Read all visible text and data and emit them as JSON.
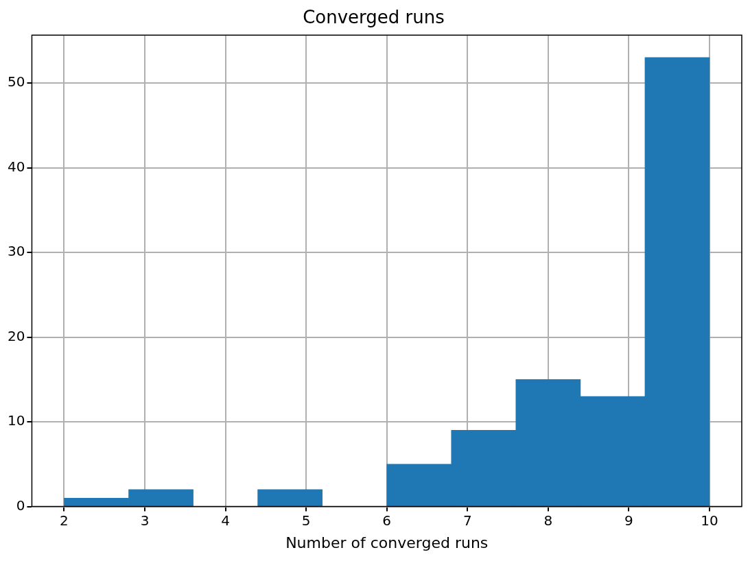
{
  "chart_data": {
    "type": "histogram",
    "title": "Converged runs",
    "xlabel": "Number of converged runs",
    "bins": [
      2,
      2.8,
      3.6,
      4.4,
      5.2,
      6,
      6.8,
      7.6,
      8.4,
      9.2,
      10
    ],
    "values": [
      1,
      2,
      0,
      2,
      0,
      5,
      9,
      15,
      13,
      53
    ],
    "color": "#1f77b4",
    "xlim": [
      1.6,
      10.4
    ],
    "xticks": [
      2,
      3,
      4,
      5,
      6,
      7,
      8,
      9,
      10
    ],
    "ylim": [
      0,
      55.65
    ],
    "yticks": [
      0,
      10,
      20,
      30,
      40,
      50
    ],
    "grid": true,
    "legend": false
  }
}
